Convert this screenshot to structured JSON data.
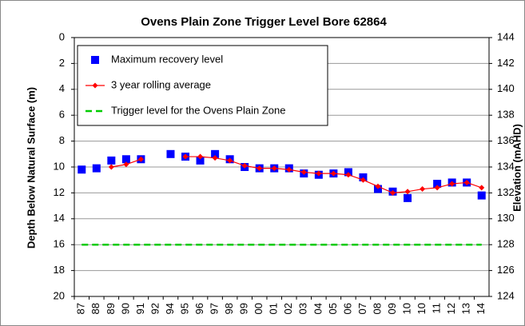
{
  "chart_data": {
    "type": "line",
    "title": "Ovens Plain Zone Trigger Level Bore 62864",
    "y_label": "Depth Below Natural Surface (m)",
    "y2_label": "Elevation (mAHD)",
    "categories": [
      "87",
      "88",
      "89",
      "90",
      "91",
      "92",
      "94",
      "95",
      "96",
      "97",
      "98",
      "99",
      "00",
      "01",
      "02",
      "03",
      "04",
      "05",
      "06",
      "07",
      "08",
      "09",
      "10",
      "10",
      "11",
      "12",
      "13",
      "14"
    ],
    "series": [
      {
        "name": "Maximum recovery level",
        "color": "#0000ff",
        "marker": "square",
        "line": false,
        "values": [
          10.2,
          10.1,
          9.5,
          9.4,
          9.4,
          null,
          9.0,
          9.2,
          9.5,
          9.0,
          9.4,
          10.0,
          10.1,
          10.1,
          10.1,
          10.5,
          10.6,
          10.5,
          10.4,
          10.8,
          11.7,
          11.9,
          12.4,
          null,
          11.3,
          11.2,
          11.2,
          12.2
        ]
      },
      {
        "name": "3 year rolling average",
        "color": "#ff0000",
        "marker": "diamond",
        "line": true,
        "values": [
          null,
          null,
          10.0,
          9.8,
          9.4,
          null,
          null,
          9.2,
          9.2,
          9.3,
          9.5,
          9.9,
          10.1,
          10.1,
          10.2,
          10.4,
          10.5,
          10.5,
          10.6,
          11.0,
          11.5,
          12.0,
          11.9,
          11.7,
          11.6,
          11.3,
          11.2,
          11.6
        ]
      },
      {
        "name": "Trigger level for the Ovens Plain Zone",
        "color": "#00cc00",
        "marker": "none",
        "line": true,
        "dashed": true,
        "values": [
          16,
          16,
          16,
          16,
          16,
          16,
          16,
          16,
          16,
          16,
          16,
          16,
          16,
          16,
          16,
          16,
          16,
          16,
          16,
          16,
          16,
          16,
          16,
          16,
          16,
          16,
          16,
          16
        ]
      }
    ],
    "ylim": [
      0,
      20
    ],
    "y_reversed": true,
    "yticks": [
      0,
      2,
      4,
      6,
      8,
      10,
      12,
      14,
      16,
      18,
      20
    ],
    "y2lim": [
      144,
      124
    ],
    "y2ticks": [
      144,
      142,
      140,
      138,
      136,
      134,
      132,
      130,
      128,
      126,
      124
    ],
    "grid": true,
    "legend": "upper left"
  }
}
